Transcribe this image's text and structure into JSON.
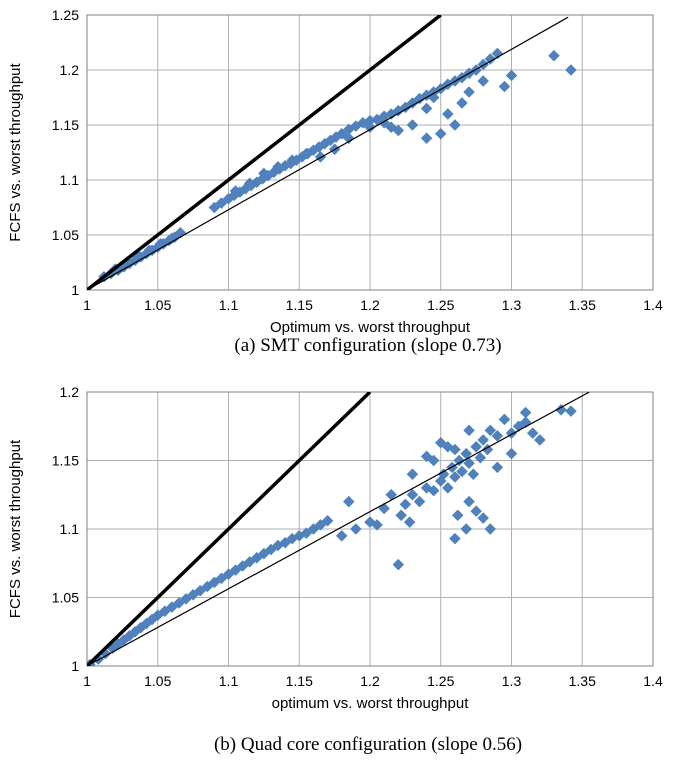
{
  "figure": {
    "captions": [
      "(a) SMT configuration (slope 0.73)",
      "(b) Quad core configuration (slope 0.56)"
    ]
  },
  "chart_data": [
    {
      "type": "scatter",
      "xlabel": "Optimum vs. worst throughput",
      "ylabel": "FCFS vs. worst throughput",
      "xlim": [
        1,
        1.4
      ],
      "ylim": [
        1,
        1.25
      ],
      "xticks": [
        "1",
        "1.05",
        "1.1",
        "1.15",
        "1.2",
        "1.25",
        "1.3",
        "1.35",
        "1.4"
      ],
      "yticks": [
        "1",
        "1.05",
        "1.1",
        "1.15",
        "1.2",
        "1.25"
      ],
      "grid": true,
      "colors": {
        "points": "#4f81bd",
        "lines": "#000000"
      },
      "lines": [
        {
          "label": "y = x",
          "points": [
            [
              1,
              1
            ],
            [
              1.25,
              1.25
            ]
          ]
        },
        {
          "label": "fit (slope 0.73)",
          "points": [
            [
              1,
              1
            ],
            [
              1.34,
              1.248
            ]
          ]
        }
      ],
      "series": [
        {
          "x": [
            1.012,
            1.017,
            1.022,
            1.026,
            1.03,
            1.034,
            1.038,
            1.042,
            1.046,
            1.05,
            1.054,
            1.058,
            1.062,
            1.066,
            1.09,
            1.095,
            1.1,
            1.104,
            1.108,
            1.112,
            1.116,
            1.12,
            1.124,
            1.128,
            1.132,
            1.136,
            1.14,
            1.144,
            1.148,
            1.152,
            1.156,
            1.16,
            1.164,
            1.168,
            1.172,
            1.176,
            1.18,
            1.185,
            1.19,
            1.195,
            1.2,
            1.205,
            1.21,
            1.215,
            1.22,
            1.225,
            1.23,
            1.235,
            1.24,
            1.245,
            1.25,
            1.255,
            1.26,
            1.265,
            1.27,
            1.275,
            1.28,
            1.285,
            1.29,
            1.295,
            1.3,
            1.33,
            1.342,
            1.02,
            1.028,
            1.036,
            1.044,
            1.052,
            1.06,
            1.105,
            1.115,
            1.125,
            1.135,
            1.145,
            1.155,
            1.165,
            1.175,
            1.185,
            1.2,
            1.21,
            1.22,
            1.23,
            1.24,
            1.245,
            1.255,
            1.265,
            1.26,
            1.27,
            1.28,
            1.25,
            1.24,
            1.215
          ],
          "y": [
            1.012,
            1.015,
            1.018,
            1.021,
            1.024,
            1.027,
            1.03,
            1.033,
            1.036,
            1.039,
            1.042,
            1.045,
            1.048,
            1.052,
            1.075,
            1.079,
            1.083,
            1.086,
            1.089,
            1.092,
            1.095,
            1.098,
            1.101,
            1.104,
            1.107,
            1.11,
            1.113,
            1.115,
            1.118,
            1.121,
            1.124,
            1.127,
            1.13,
            1.133,
            1.136,
            1.139,
            1.142,
            1.146,
            1.149,
            1.152,
            1.154,
            1.155,
            1.158,
            1.16,
            1.163,
            1.166,
            1.17,
            1.174,
            1.177,
            1.18,
            1.183,
            1.187,
            1.19,
            1.193,
            1.197,
            1.2,
            1.205,
            1.21,
            1.215,
            1.185,
            1.195,
            1.213,
            1.2,
            1.019,
            1.025,
            1.031,
            1.036,
            1.042,
            1.047,
            1.09,
            1.097,
            1.106,
            1.112,
            1.118,
            1.124,
            1.121,
            1.128,
            1.138,
            1.148,
            1.152,
            1.145,
            1.15,
            1.165,
            1.175,
            1.16,
            1.17,
            1.15,
            1.18,
            1.19,
            1.142,
            1.138,
            1.148
          ]
        }
      ]
    },
    {
      "type": "scatter",
      "xlabel": "optimum vs. worst throughput",
      "ylabel": "FCFS vs. worst throughput",
      "xlim": [
        1,
        1.4
      ],
      "ylim": [
        1,
        1.2
      ],
      "xticks": [
        "1",
        "1.05",
        "1.1",
        "1.15",
        "1.2",
        "1.25",
        "1.3",
        "1.35",
        "1.4"
      ],
      "yticks": [
        "1",
        "1.05",
        "1.1",
        "1.15",
        "1.2"
      ],
      "grid": true,
      "colors": {
        "points": "#4f81bd",
        "lines": "#000000"
      },
      "lines": [
        {
          "label": "y = x",
          "points": [
            [
              1,
              1
            ],
            [
              1.2,
              1.2
            ]
          ]
        },
        {
          "label": "fit (slope 0.56)",
          "points": [
            [
              1,
              1
            ],
            [
              1.355,
              1.2
            ]
          ]
        }
      ],
      "series": [
        {
          "x": [
            1.002,
            1.008,
            1.013,
            1.018,
            1.022,
            1.026,
            1.03,
            1.034,
            1.038,
            1.042,
            1.046,
            1.05,
            1.055,
            1.06,
            1.065,
            1.07,
            1.075,
            1.08,
            1.085,
            1.09,
            1.095,
            1.1,
            1.105,
            1.11,
            1.115,
            1.12,
            1.125,
            1.13,
            1.135,
            1.14,
            1.145,
            1.15,
            1.155,
            1.16,
            1.165,
            1.17,
            1.18,
            1.185,
            1.19,
            1.2,
            1.205,
            1.21,
            1.215,
            1.22,
            1.222,
            1.225,
            1.23,
            1.235,
            1.24,
            1.245,
            1.25,
            1.252,
            1.255,
            1.258,
            1.26,
            1.263,
            1.265,
            1.268,
            1.27,
            1.273,
            1.275,
            1.278,
            1.28,
            1.283,
            1.285,
            1.29,
            1.295,
            1.3,
            1.305,
            1.31,
            1.315,
            1.32,
            1.335,
            1.342,
            1.245,
            1.255,
            1.262,
            1.27,
            1.275,
            1.285,
            1.29,
            1.25,
            1.26,
            1.24,
            1.23,
            1.27,
            1.228,
            1.26,
            1.268,
            1.28,
            1.31,
            1.3
          ],
          "y": [
            1.001,
            1.005,
            1.009,
            1.013,
            1.016,
            1.019,
            1.022,
            1.025,
            1.028,
            1.031,
            1.034,
            1.037,
            1.04,
            1.043,
            1.046,
            1.049,
            1.052,
            1.055,
            1.058,
            1.061,
            1.064,
            1.067,
            1.07,
            1.073,
            1.076,
            1.079,
            1.082,
            1.085,
            1.088,
            1.09,
            1.093,
            1.095,
            1.097,
            1.1,
            1.103,
            1.106,
            1.095,
            1.12,
            1.1,
            1.105,
            1.103,
            1.115,
            1.125,
            1.074,
            1.11,
            1.118,
            1.125,
            1.12,
            1.13,
            1.128,
            1.135,
            1.14,
            1.13,
            1.145,
            1.138,
            1.15,
            1.142,
            1.155,
            1.148,
            1.14,
            1.16,
            1.152,
            1.165,
            1.158,
            1.172,
            1.168,
            1.18,
            1.17,
            1.175,
            1.185,
            1.17,
            1.165,
            1.187,
            1.186,
            1.15,
            1.16,
            1.11,
            1.12,
            1.113,
            1.1,
            1.145,
            1.163,
            1.158,
            1.153,
            1.14,
            1.172,
            1.105,
            1.093,
            1.1,
            1.108,
            1.178,
            1.155
          ],
          "style": "filled-diamond"
        }
      ]
    }
  ]
}
